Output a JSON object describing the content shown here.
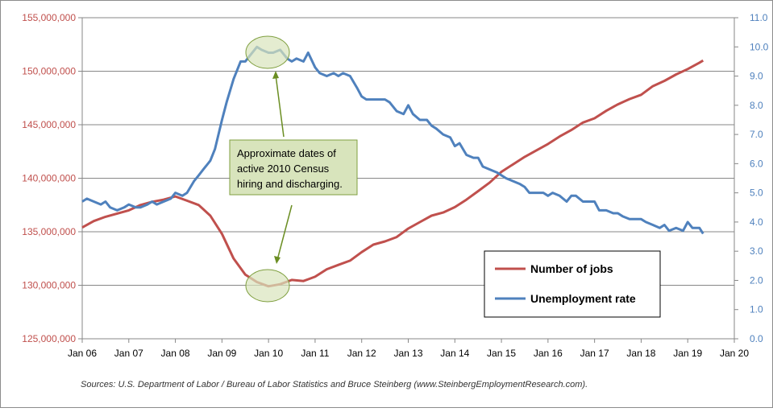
{
  "chart_data": {
    "type": "line",
    "x_labels": [
      "Jan 06",
      "Jan 07",
      "Jan 08",
      "Jan 09",
      "Jan 10",
      "Jan 11",
      "Jan 12",
      "Jan 13",
      "Jan 14",
      "Jan 15",
      "Jan 16",
      "Jan 17",
      "Jan 18",
      "Jan 19",
      "Jan 20"
    ],
    "xlim": [
      2006.0,
      2020.0
    ],
    "left_axis": {
      "ylim": [
        125000000,
        155000000
      ],
      "ticks": [
        "125,000,000",
        "130,000,000",
        "135,000,000",
        "140,000,000",
        "145,000,000",
        "150,000,000",
        "155,000,000"
      ],
      "color": "#C0504D"
    },
    "right_axis": {
      "ylim": [
        0,
        11
      ],
      "ticks": [
        "0.0",
        "1.0",
        "2.0",
        "3.0",
        "4.0",
        "5.0",
        "6.0",
        "7.0",
        "8.0",
        "9.0",
        "10.0",
        "11.0"
      ],
      "color": "#4F81BD"
    },
    "grid": "horizontal",
    "legend_position": "bottom-right",
    "series": [
      {
        "name": "Number of jobs",
        "axis": "left",
        "color": "#C0504D",
        "points": [
          [
            2006.0,
            135400000
          ],
          [
            2006.25,
            136000000
          ],
          [
            2006.5,
            136400000
          ],
          [
            2006.75,
            136700000
          ],
          [
            2007.0,
            137000000
          ],
          [
            2007.25,
            137500000
          ],
          [
            2007.5,
            137800000
          ],
          [
            2007.75,
            138000000
          ],
          [
            2008.0,
            138300000
          ],
          [
            2008.25,
            137900000
          ],
          [
            2008.5,
            137500000
          ],
          [
            2008.75,
            136500000
          ],
          [
            2009.0,
            134800000
          ],
          [
            2009.25,
            132500000
          ],
          [
            2009.5,
            131000000
          ],
          [
            2009.75,
            130300000
          ],
          [
            2010.0,
            129900000
          ],
          [
            2010.25,
            130100000
          ],
          [
            2010.5,
            130500000
          ],
          [
            2010.75,
            130400000
          ],
          [
            2011.0,
            130800000
          ],
          [
            2011.25,
            131500000
          ],
          [
            2011.5,
            131900000
          ],
          [
            2011.75,
            132300000
          ],
          [
            2012.0,
            133100000
          ],
          [
            2012.25,
            133800000
          ],
          [
            2012.5,
            134100000
          ],
          [
            2012.75,
            134500000
          ],
          [
            2013.0,
            135300000
          ],
          [
            2013.25,
            135900000
          ],
          [
            2013.5,
            136500000
          ],
          [
            2013.75,
            136800000
          ],
          [
            2014.0,
            137300000
          ],
          [
            2014.25,
            138000000
          ],
          [
            2014.5,
            138800000
          ],
          [
            2014.75,
            139600000
          ],
          [
            2015.0,
            140600000
          ],
          [
            2015.25,
            141300000
          ],
          [
            2015.5,
            142000000
          ],
          [
            2015.75,
            142600000
          ],
          [
            2016.0,
            143200000
          ],
          [
            2016.25,
            143900000
          ],
          [
            2016.5,
            144500000
          ],
          [
            2016.75,
            145200000
          ],
          [
            2017.0,
            145600000
          ],
          [
            2017.25,
            146300000
          ],
          [
            2017.5,
            146900000
          ],
          [
            2017.75,
            147400000
          ],
          [
            2018.0,
            147800000
          ],
          [
            2018.25,
            148600000
          ],
          [
            2018.5,
            149100000
          ],
          [
            2018.75,
            149700000
          ],
          [
            2019.0,
            150200000
          ],
          [
            2019.25,
            150800000
          ],
          [
            2019.33,
            151000000
          ]
        ]
      },
      {
        "name": "Unemployment rate",
        "axis": "right",
        "color": "#4F81BD",
        "points": [
          [
            2006.0,
            4.7
          ],
          [
            2006.1,
            4.8
          ],
          [
            2006.25,
            4.7
          ],
          [
            2006.4,
            4.6
          ],
          [
            2006.5,
            4.7
          ],
          [
            2006.6,
            4.5
          ],
          [
            2006.75,
            4.4
          ],
          [
            2006.9,
            4.5
          ],
          [
            2007.0,
            4.6
          ],
          [
            2007.15,
            4.5
          ],
          [
            2007.25,
            4.5
          ],
          [
            2007.4,
            4.6
          ],
          [
            2007.5,
            4.7
          ],
          [
            2007.6,
            4.6
          ],
          [
            2007.75,
            4.7
          ],
          [
            2007.9,
            4.8
          ],
          [
            2008.0,
            5.0
          ],
          [
            2008.15,
            4.9
          ],
          [
            2008.25,
            5.0
          ],
          [
            2008.4,
            5.4
          ],
          [
            2008.5,
            5.6
          ],
          [
            2008.6,
            5.8
          ],
          [
            2008.75,
            6.1
          ],
          [
            2008.85,
            6.5
          ],
          [
            2009.0,
            7.5
          ],
          [
            2009.1,
            8.1
          ],
          [
            2009.25,
            8.9
          ],
          [
            2009.4,
            9.5
          ],
          [
            2009.5,
            9.5
          ],
          [
            2009.6,
            9.7
          ],
          [
            2009.75,
            10.0
          ],
          [
            2009.85,
            9.9
          ],
          [
            2010.0,
            9.8
          ],
          [
            2010.1,
            9.8
          ],
          [
            2010.25,
            9.9
          ],
          [
            2010.4,
            9.6
          ],
          [
            2010.5,
            9.5
          ],
          [
            2010.6,
            9.6
          ],
          [
            2010.75,
            9.5
          ],
          [
            2010.85,
            9.8
          ],
          [
            2011.0,
            9.3
          ],
          [
            2011.1,
            9.1
          ],
          [
            2011.25,
            9.0
          ],
          [
            2011.4,
            9.1
          ],
          [
            2011.5,
            9.0
          ],
          [
            2011.6,
            9.1
          ],
          [
            2011.75,
            9.0
          ],
          [
            2011.9,
            8.6
          ],
          [
            2012.0,
            8.3
          ],
          [
            2012.1,
            8.2
          ],
          [
            2012.25,
            8.2
          ],
          [
            2012.4,
            8.2
          ],
          [
            2012.5,
            8.2
          ],
          [
            2012.6,
            8.1
          ],
          [
            2012.75,
            7.8
          ],
          [
            2012.9,
            7.7
          ],
          [
            2013.0,
            8.0
          ],
          [
            2013.1,
            7.7
          ],
          [
            2013.25,
            7.5
          ],
          [
            2013.4,
            7.5
          ],
          [
            2013.5,
            7.3
          ],
          [
            2013.6,
            7.2
          ],
          [
            2013.75,
            7.0
          ],
          [
            2013.9,
            6.9
          ],
          [
            2014.0,
            6.6
          ],
          [
            2014.1,
            6.7
          ],
          [
            2014.25,
            6.3
          ],
          [
            2014.4,
            6.2
          ],
          [
            2014.5,
            6.2
          ],
          [
            2014.6,
            5.9
          ],
          [
            2014.75,
            5.8
          ],
          [
            2014.9,
            5.7
          ],
          [
            2015.0,
            5.6
          ],
          [
            2015.1,
            5.5
          ],
          [
            2015.25,
            5.4
          ],
          [
            2015.4,
            5.3
          ],
          [
            2015.5,
            5.2
          ],
          [
            2015.6,
            5.0
          ],
          [
            2015.75,
            5.0
          ],
          [
            2015.9,
            5.0
          ],
          [
            2016.0,
            4.9
          ],
          [
            2016.1,
            5.0
          ],
          [
            2016.25,
            4.9
          ],
          [
            2016.4,
            4.7
          ],
          [
            2016.5,
            4.9
          ],
          [
            2016.6,
            4.9
          ],
          [
            2016.75,
            4.7
          ],
          [
            2016.9,
            4.7
          ],
          [
            2017.0,
            4.7
          ],
          [
            2017.1,
            4.4
          ],
          [
            2017.25,
            4.4
          ],
          [
            2017.4,
            4.3
          ],
          [
            2017.5,
            4.3
          ],
          [
            2017.6,
            4.2
          ],
          [
            2017.75,
            4.1
          ],
          [
            2017.9,
            4.1
          ],
          [
            2018.0,
            4.1
          ],
          [
            2018.1,
            4.0
          ],
          [
            2018.25,
            3.9
          ],
          [
            2018.4,
            3.8
          ],
          [
            2018.5,
            3.9
          ],
          [
            2018.6,
            3.7
          ],
          [
            2018.75,
            3.8
          ],
          [
            2018.9,
            3.7
          ],
          [
            2019.0,
            4.0
          ],
          [
            2019.1,
            3.8
          ],
          [
            2019.25,
            3.8
          ],
          [
            2019.33,
            3.6
          ]
        ]
      }
    ],
    "annotation": {
      "lines": [
        "Approximate dates of",
        "active 2010  Census",
        "hiring and discharging."
      ],
      "box_fill": "#D8E4BC",
      "box_border": "#7F9F3F"
    }
  },
  "source_note": "Sources:  U.S. Department of Labor / Bureau of Labor Statistics and Bruce Steinberg (www.SteinbergEmploymentResearch.com)."
}
